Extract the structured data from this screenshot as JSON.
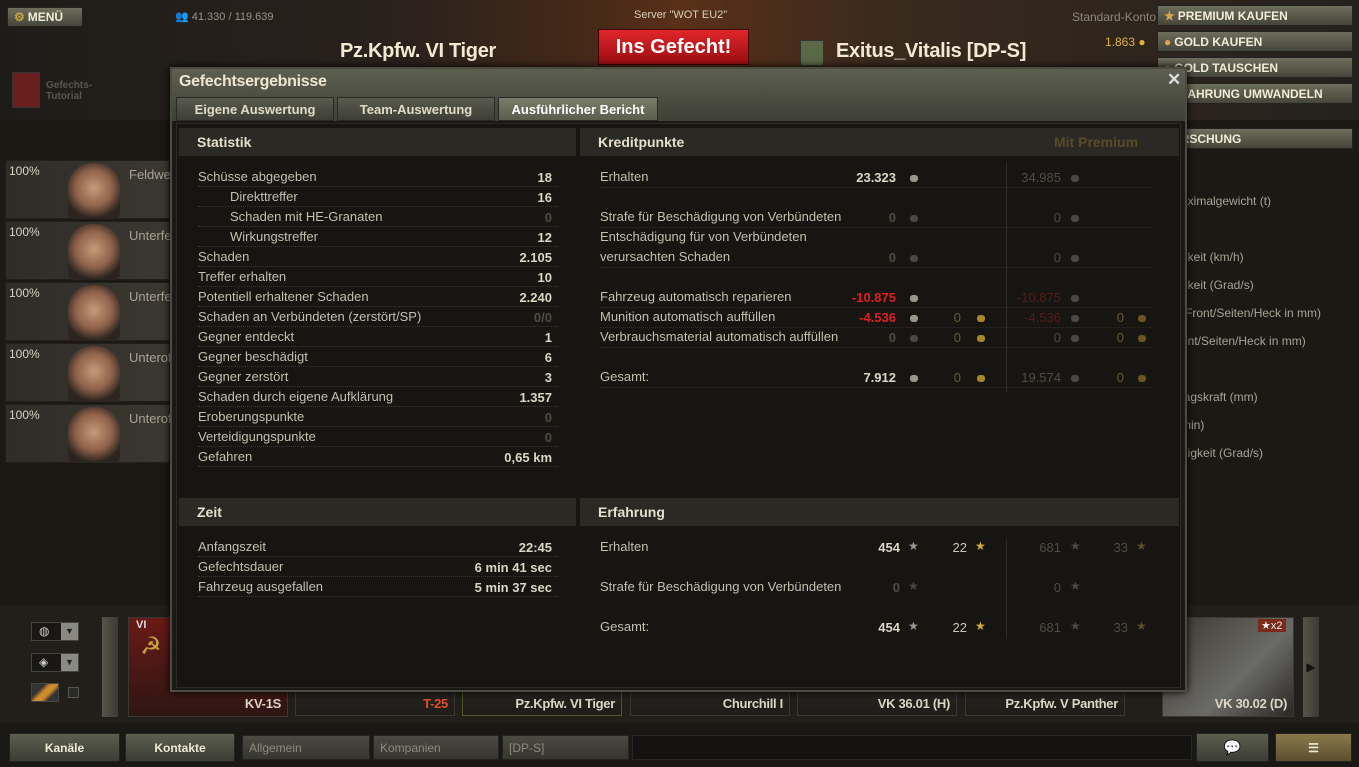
{
  "header": {
    "menu_label": "MENÜ",
    "online_count": "41.330 / 119.639",
    "server": "Server \"WOT EU2\"",
    "vehicle_name": "Pz.Kpfw. VI Tiger",
    "battle_button": "Ins Gefecht!",
    "player_name": "Exitus_Vitalis [DP-S]",
    "account_type": "Standard-Konto",
    "gold": "1.863",
    "tutorial_label": "Gefechts-Tutorial",
    "buttons": [
      "PREMIUM KAUFEN",
      "GOLD KAUFEN",
      "GOLD TAUSCHEN",
      "ERFAHRUNG UMWANDELN"
    ],
    "research_label": "FORSCHUNG"
  },
  "crew": [
    {
      "pct": "100%",
      "rank": "Feldwebel"
    },
    {
      "pct": "100%",
      "rank": "Unterfeldwebel"
    },
    {
      "pct": "100%",
      "rank": "Unterfeldwebel"
    },
    {
      "pct": "100%",
      "rank": "Unteroffizier"
    },
    {
      "pct": "100%",
      "rank": "Unteroffizier"
    }
  ],
  "right_panel_labels": [
    "aximalgewicht (t)",
    "gkeit (km/h)",
    "gkeit (Grad/s)",
    "(Front/Seiten/Heck in mm)",
    "ont/Seiten/Heck in mm)",
    "lagskraft (mm)",
    "min)",
    "digkeit (Grad/s)"
  ],
  "dialog": {
    "title": "Gefechtsergebnisse",
    "tabs": [
      {
        "label": "Eigene Auswertung",
        "active": false
      },
      {
        "label": "Team-Auswertung",
        "active": false
      },
      {
        "label": "Ausführlicher Bericht",
        "active": true
      }
    ],
    "statistik": {
      "title": "Statistik",
      "rows": [
        {
          "label": "Schüsse abgegeben",
          "value": "18"
        },
        {
          "label": "Direkttreffer",
          "value": "16",
          "indent": true
        },
        {
          "label": "Schaden mit HE-Granaten",
          "value": "0",
          "indent": true,
          "dim": true
        },
        {
          "label": "Wirkungstreffer",
          "value": "12",
          "indent": true
        },
        {
          "label": "Schaden",
          "value": "2.105"
        },
        {
          "label": "Treffer erhalten",
          "value": "10"
        },
        {
          "label": "Potentiell erhaltener Schaden",
          "value": "2.240"
        },
        {
          "label": "Schaden an Verbündeten (zerstört/SP)",
          "value": "0/0",
          "dim": true
        },
        {
          "label": "Gegner entdeckt",
          "value": "1"
        },
        {
          "label": "Gegner beschädigt",
          "value": "6"
        },
        {
          "label": "Gegner zerstört",
          "value": "3"
        },
        {
          "label": "Schaden durch eigene Aufklärung",
          "value": "1.357"
        },
        {
          "label": "Eroberungspunkte",
          "value": "0",
          "dim": true
        },
        {
          "label": "Verteidigungspunkte",
          "value": "0",
          "dim": true
        },
        {
          "label": "Gefahren",
          "value": "0,65 km"
        }
      ]
    },
    "kreditpunkte": {
      "title": "Kreditpunkte",
      "premium_label": "Mit Premium",
      "rows": [
        {
          "label": "Erhalten",
          "credits": "23.323",
          "gold": null,
          "prem_credits": "34.985",
          "prem_gold": null,
          "style": "normal"
        },
        {
          "label": "Strafe für Beschädigung von Verbündeten",
          "credits": "0",
          "gold": null,
          "prem_credits": "0",
          "prem_gold": null,
          "style": "dim"
        },
        {
          "label": "Entschädigung für von Verbündeten",
          "label2": "verursachten Schaden",
          "credits": "0",
          "gold": null,
          "prem_credits": "0",
          "prem_gold": null,
          "style": "dim"
        },
        {
          "label": "Fahrzeug automatisch reparieren",
          "credits": "-10.875",
          "gold": null,
          "prem_credits": "-10.875",
          "prem_gold": null,
          "style": "red"
        },
        {
          "label": "Munition automatisch auffüllen",
          "credits": "-4.536",
          "gold": "0",
          "prem_credits": "-4.536",
          "prem_gold": "0",
          "style": "red"
        },
        {
          "label": "Verbrauchsmaterial automatisch auffüllen",
          "credits": "0",
          "gold": "0",
          "prem_credits": "0",
          "prem_gold": "0",
          "style": "dim"
        },
        {
          "label": "Gesamt:",
          "credits": "7.912",
          "gold": "0",
          "prem_credits": "19.574",
          "prem_gold": "0",
          "style": "normal"
        }
      ]
    },
    "zeit": {
      "title": "Zeit",
      "rows": [
        {
          "label": "Anfangszeit",
          "value": "22:45"
        },
        {
          "label": "Gefechtsdauer",
          "value": "6 min 41 sec"
        },
        {
          "label": "Fahrzeug ausgefallen",
          "value": "5 min 37 sec"
        }
      ]
    },
    "erfahrung": {
      "title": "Erfahrung",
      "rows": [
        {
          "label": "Erhalten",
          "xp": "454",
          "free_xp": "22",
          "prem_xp": "681",
          "prem_free_xp": "33",
          "style": "normal"
        },
        {
          "label": "Strafe für Beschädigung von Verbündeten",
          "xp": "0",
          "free_xp": null,
          "prem_xp": "0",
          "prem_free_xp": null,
          "style": "dim"
        },
        {
          "label": "Gesamt:",
          "xp": "454",
          "free_xp": "22",
          "prem_xp": "681",
          "prem_free_xp": "33",
          "style": "normal"
        }
      ]
    }
  },
  "carousel": {
    "vehicles": [
      {
        "name": "KV-1S",
        "tier": "VI",
        "color": "#dcd6c4"
      },
      {
        "name": "T-25",
        "color": "#e0502a"
      },
      {
        "name": "Pz.Kpfw. VI Tiger",
        "color": "#dcd6c4",
        "selected": true
      },
      {
        "name": "Churchill I",
        "color": "#dcd6c4"
      },
      {
        "name": "VK 36.01 (H)",
        "color": "#dcd6c4"
      },
      {
        "name": "Pz.Kpfw. V Panther",
        "color": "#dcd6c4"
      },
      {
        "name": "VK 30.02 (D)",
        "color": "#dcd6c4",
        "badge": "x2"
      }
    ]
  },
  "chat": {
    "buttons": [
      "Kanäle",
      "Kontakte"
    ],
    "channels": [
      "Allgemein",
      "Kompanien",
      "[DP-S]"
    ]
  },
  "colors": {
    "battle_red": "#c8141a",
    "gold": "#d9a84a",
    "negative": "#d22222"
  }
}
